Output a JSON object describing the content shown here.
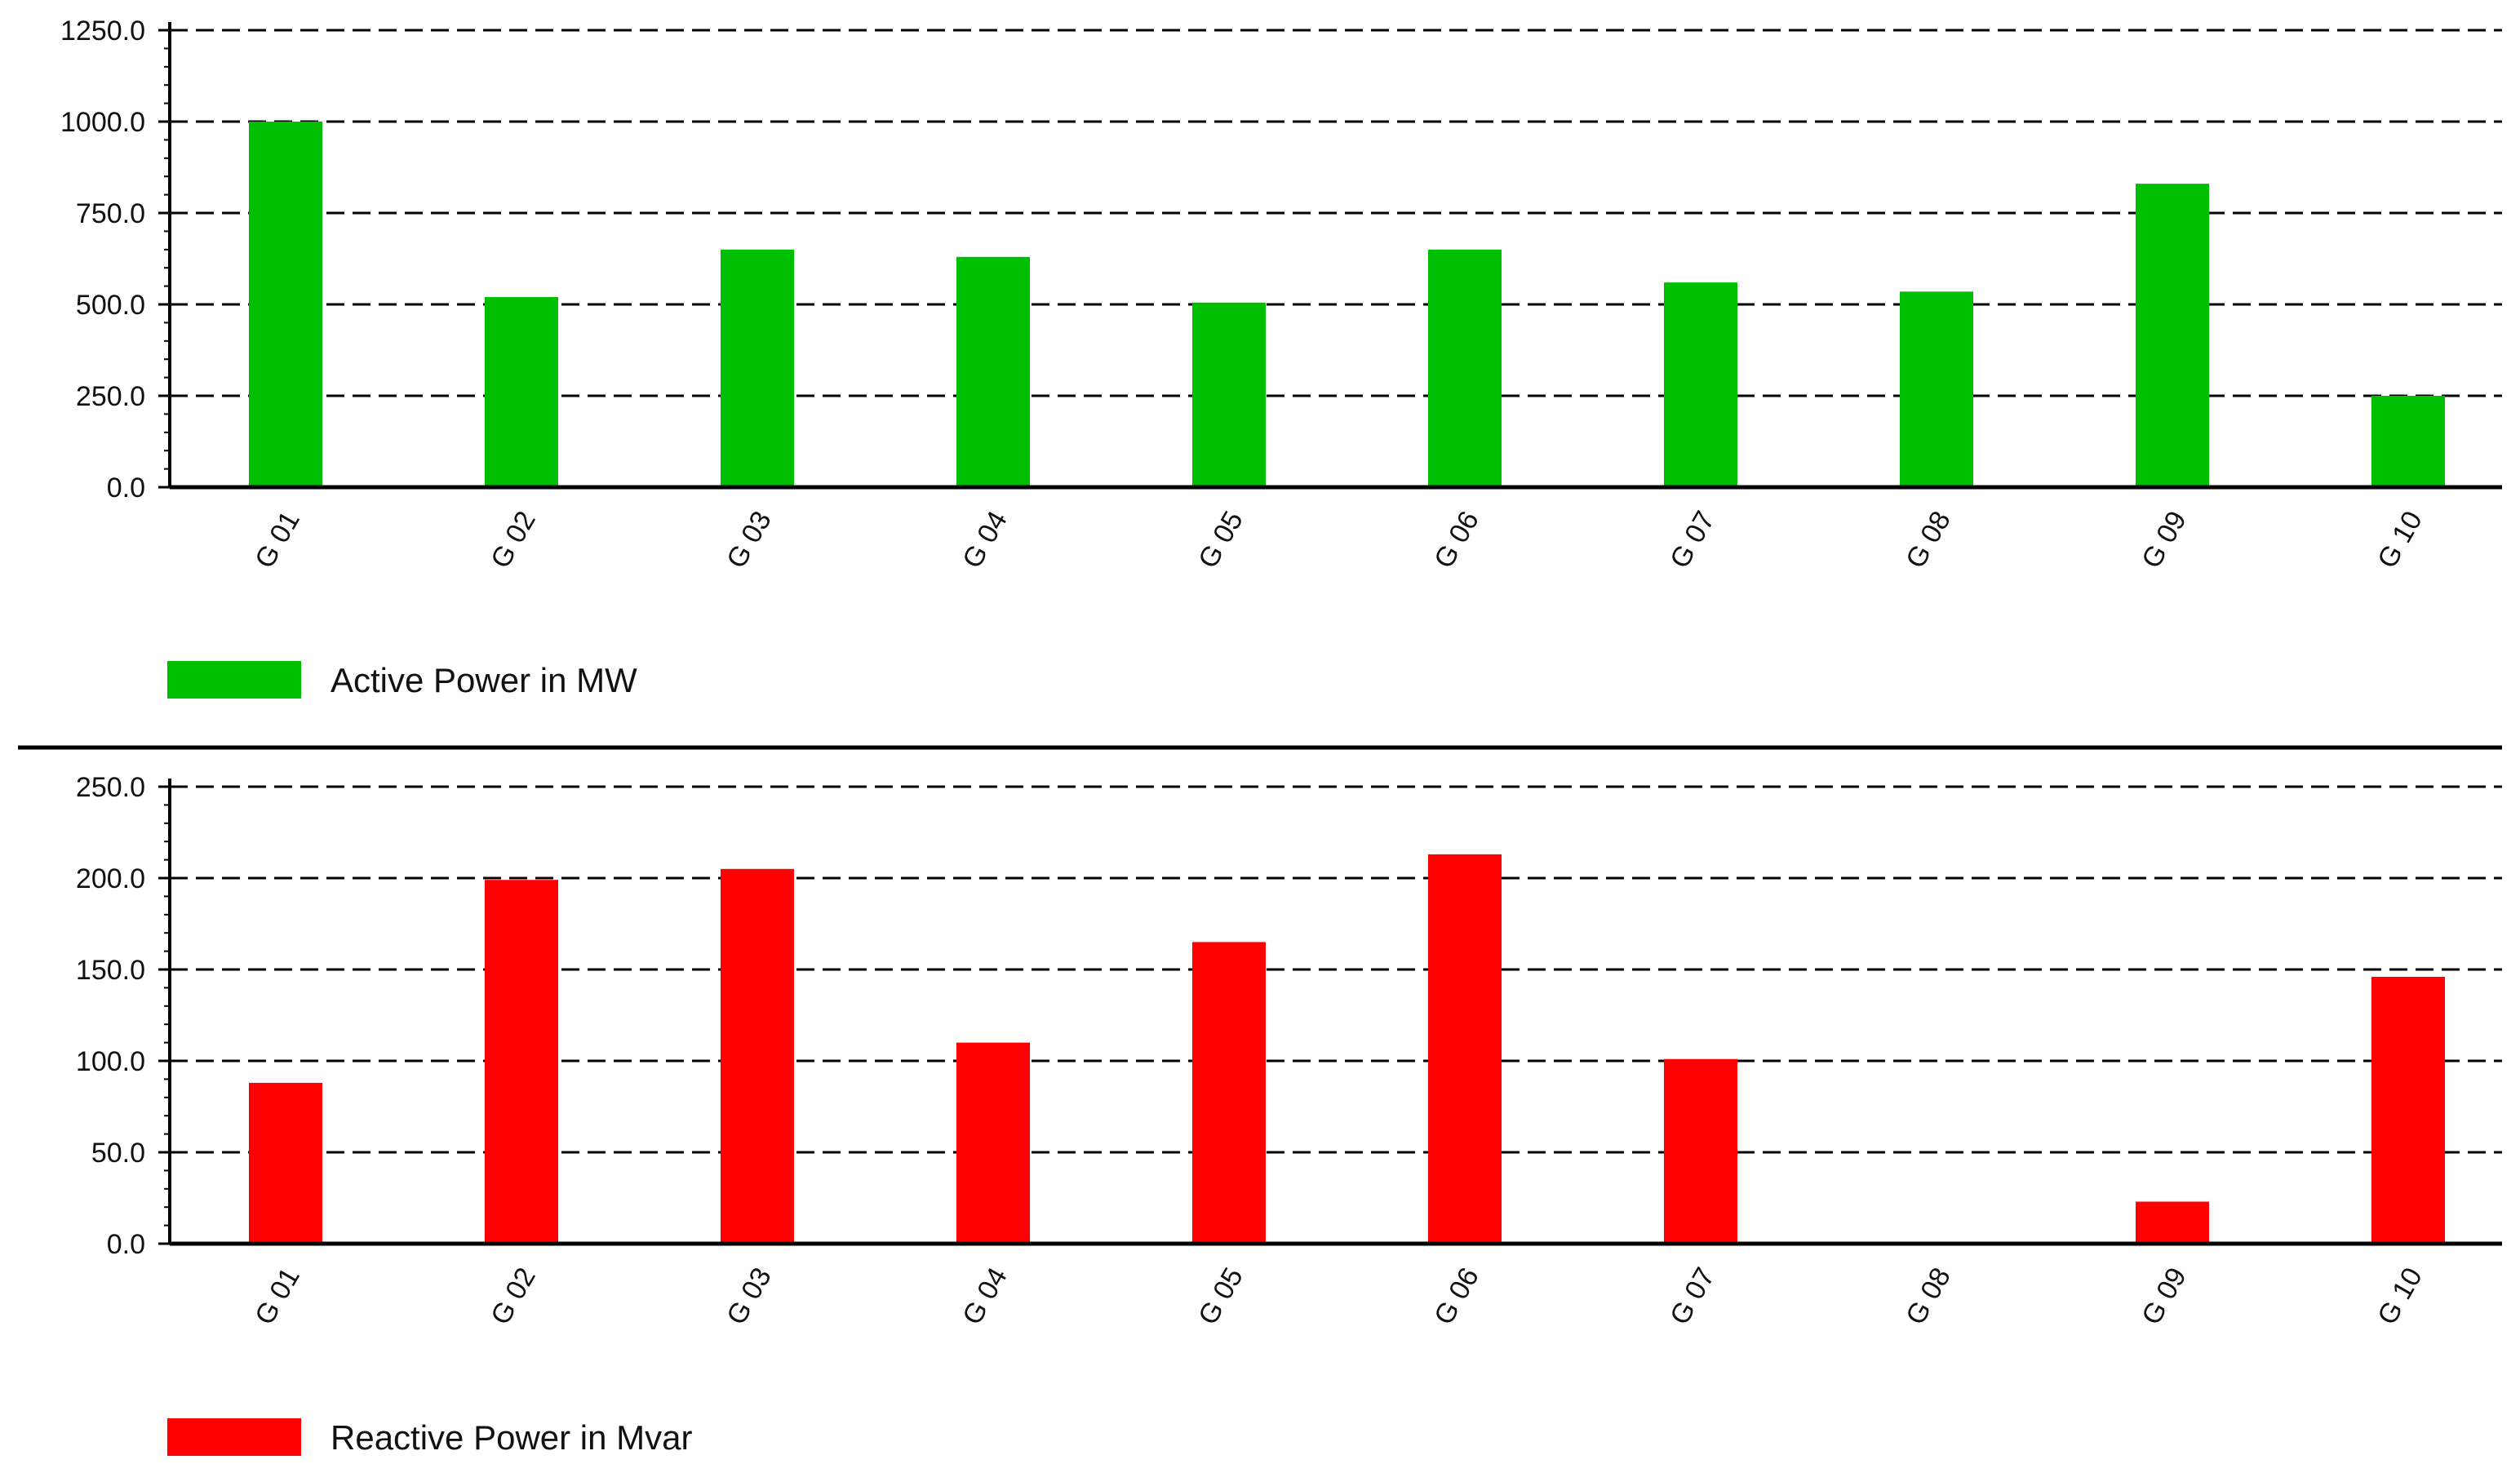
{
  "colors": {
    "active": "#00bf00",
    "reactive": "#ff0000",
    "axis": "#000000",
    "grid": "#000000"
  },
  "chart_data": [
    {
      "type": "bar",
      "categories": [
        "G 01",
        "G 02",
        "G 03",
        "G 04",
        "G 05",
        "G 06",
        "G 07",
        "G 08",
        "G 09",
        "G 10"
      ],
      "series": [
        {
          "name": "Active Power in MW",
          "values": [
            1000,
            520,
            650,
            630,
            505,
            650,
            560,
            535,
            830,
            250
          ]
        }
      ],
      "yticks": [
        "0.0",
        "250.0",
        "500.0",
        "750.0",
        "1000.0",
        "1250.0"
      ],
      "ylim": [
        0,
        1250
      ],
      "grid": true,
      "legend_placement": "bottom-left"
    },
    {
      "type": "bar",
      "categories": [
        "G 01",
        "G 02",
        "G 03",
        "G 04",
        "G 05",
        "G 06",
        "G 07",
        "G 08",
        "G 09",
        "G 10"
      ],
      "series": [
        {
          "name": "Reactive Power in Mvar",
          "values": [
            88,
            199,
            205,
            110,
            165,
            213,
            101,
            1,
            23,
            146
          ]
        }
      ],
      "yticks": [
        "0.0",
        "50.0",
        "100.0",
        "150.0",
        "200.0",
        "250.0"
      ],
      "ylim": [
        0,
        250
      ],
      "grid": true,
      "legend_placement": "bottom-left"
    }
  ]
}
